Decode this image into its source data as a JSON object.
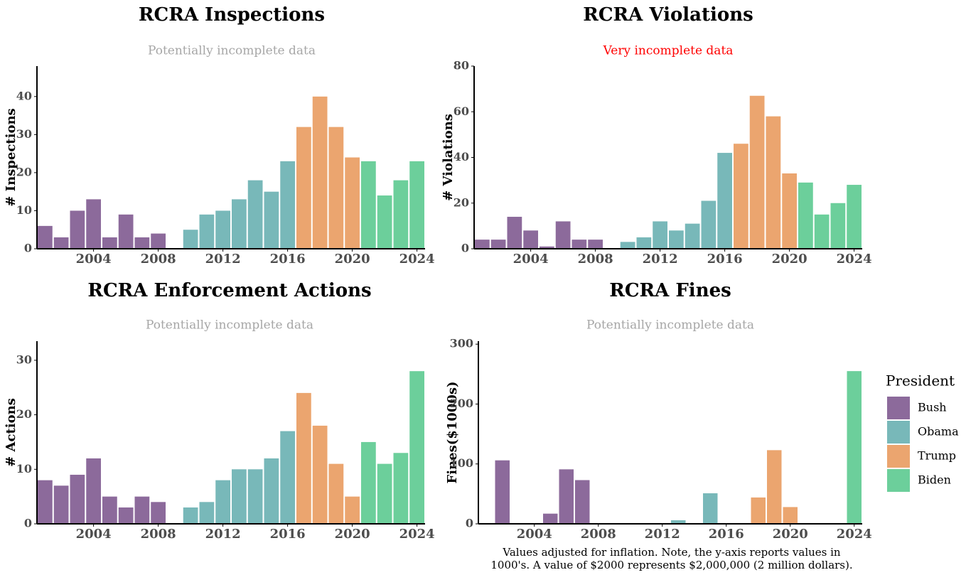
{
  "chart_data": [
    {
      "type": "bar",
      "title": "RCRA Inspections",
      "subtitle": "Potentially incomplete data",
      "subtitle_color": "#a6a6a6",
      "y_label": "# Inspections",
      "x": [
        2001,
        2002,
        2003,
        2004,
        2005,
        2006,
        2007,
        2008,
        2009,
        2010,
        2011,
        2012,
        2013,
        2014,
        2015,
        2016,
        2017,
        2018,
        2019,
        2020,
        2021,
        2022,
        2023,
        2024
      ],
      "series": [
        {
          "name": "Bush",
          "color": "#8c6a9b",
          "values": [
            6,
            3,
            10,
            13,
            3,
            9,
            3,
            4,
            null,
            null,
            null,
            null,
            null,
            null,
            null,
            null,
            null,
            null,
            null,
            null,
            null,
            null,
            null,
            null
          ]
        },
        {
          "name": "Obama",
          "color": "#78b8b9",
          "values": [
            null,
            null,
            null,
            null,
            null,
            null,
            null,
            null,
            0,
            5,
            9,
            10,
            13,
            18,
            15,
            23,
            null,
            null,
            null,
            null,
            null,
            null,
            null,
            null
          ]
        },
        {
          "name": "Trump",
          "color": "#eba56f",
          "values": [
            null,
            null,
            null,
            null,
            null,
            null,
            null,
            null,
            null,
            null,
            null,
            null,
            null,
            null,
            null,
            null,
            32,
            40,
            32,
            24,
            null,
            null,
            null,
            null
          ]
        },
        {
          "name": "Biden",
          "color": "#6ccf9b",
          "values": [
            null,
            null,
            null,
            null,
            null,
            null,
            null,
            null,
            null,
            null,
            null,
            null,
            null,
            null,
            null,
            null,
            null,
            null,
            null,
            null,
            23,
            14,
            18,
            23
          ]
        }
      ],
      "xlim": [
        2000.5,
        2024.5
      ],
      "xticks": [
        2004,
        2008,
        2012,
        2016,
        2020,
        2024
      ],
      "ylim": [
        0,
        48
      ],
      "yticks": [
        0,
        10,
        20,
        30,
        40
      ]
    },
    {
      "type": "bar",
      "title": "RCRA Violations",
      "subtitle": "Very incomplete data",
      "subtitle_color": "#ff0000",
      "y_label": "# Violations",
      "x": [
        2001,
        2002,
        2003,
        2004,
        2005,
        2006,
        2007,
        2008,
        2009,
        2010,
        2011,
        2012,
        2013,
        2014,
        2015,
        2016,
        2017,
        2018,
        2019,
        2020,
        2021,
        2022,
        2023,
        2024
      ],
      "series": [
        {
          "name": "Bush",
          "color": "#8c6a9b",
          "values": [
            4,
            4,
            14,
            8,
            1,
            12,
            4,
            4,
            null,
            null,
            null,
            null,
            null,
            null,
            null,
            null,
            null,
            null,
            null,
            null,
            null,
            null,
            null,
            null
          ]
        },
        {
          "name": "Obama",
          "color": "#78b8b9",
          "values": [
            null,
            null,
            null,
            null,
            null,
            null,
            null,
            null,
            0,
            3,
            5,
            12,
            8,
            11,
            21,
            42,
            null,
            null,
            null,
            null,
            null,
            null,
            null,
            null
          ]
        },
        {
          "name": "Trump",
          "color": "#eba56f",
          "values": [
            null,
            null,
            null,
            null,
            null,
            null,
            null,
            null,
            null,
            null,
            null,
            null,
            null,
            null,
            null,
            null,
            46,
            67,
            58,
            33,
            null,
            null,
            null,
            null
          ]
        },
        {
          "name": "Biden",
          "color": "#6ccf9b",
          "values": [
            null,
            null,
            null,
            null,
            null,
            null,
            null,
            null,
            null,
            null,
            null,
            null,
            null,
            null,
            null,
            null,
            null,
            null,
            null,
            null,
            29,
            15,
            20,
            28
          ]
        }
      ],
      "xlim": [
        2000.5,
        2024.5
      ],
      "xticks": [
        2004,
        2008,
        2012,
        2016,
        2020,
        2024
      ],
      "ylim": [
        0,
        80
      ],
      "yticks": [
        0,
        20,
        40,
        60,
        80
      ]
    },
    {
      "type": "bar",
      "title": "RCRA Enforcement Actions",
      "subtitle": "Potentially incomplete data",
      "subtitle_color": "#a6a6a6",
      "y_label": "# Actions",
      "x": [
        2001,
        2002,
        2003,
        2004,
        2005,
        2006,
        2007,
        2008,
        2009,
        2010,
        2011,
        2012,
        2013,
        2014,
        2015,
        2016,
        2017,
        2018,
        2019,
        2020,
        2021,
        2022,
        2023,
        2024
      ],
      "series": [
        {
          "name": "Bush",
          "color": "#8c6a9b",
          "values": [
            8,
            7,
            9,
            12,
            5,
            3,
            5,
            4,
            null,
            null,
            null,
            null,
            null,
            null,
            null,
            null,
            null,
            null,
            null,
            null,
            null,
            null,
            null,
            null
          ]
        },
        {
          "name": "Obama",
          "color": "#78b8b9",
          "values": [
            null,
            null,
            null,
            null,
            null,
            null,
            null,
            null,
            0,
            3,
            4,
            8,
            10,
            10,
            12,
            17,
            null,
            null,
            null,
            null,
            null,
            null,
            null,
            null
          ]
        },
        {
          "name": "Trump",
          "color": "#eba56f",
          "values": [
            null,
            null,
            null,
            null,
            null,
            null,
            null,
            null,
            null,
            null,
            null,
            null,
            null,
            null,
            null,
            null,
            24,
            18,
            11,
            5,
            null,
            null,
            null,
            null
          ]
        },
        {
          "name": "Biden",
          "color": "#6ccf9b",
          "values": [
            null,
            null,
            null,
            null,
            null,
            null,
            null,
            null,
            null,
            null,
            null,
            null,
            null,
            null,
            null,
            null,
            null,
            null,
            null,
            null,
            15,
            11,
            13,
            28
          ]
        }
      ],
      "xlim": [
        2000.5,
        2024.5
      ],
      "xticks": [
        2004,
        2008,
        2012,
        2016,
        2020,
        2024
      ],
      "ylim": [
        0,
        33.5
      ],
      "yticks": [
        0,
        10,
        20,
        30
      ]
    },
    {
      "type": "bar",
      "title": "RCRA Fines",
      "subtitle": "Potentially incomplete data",
      "subtitle_color": "#a6a6a6",
      "y_label": "Fines($1000s)",
      "note": [
        "Values adjusted for inflation. Note, the y-axis reports values in",
        "1000's. A value of $2000 represents $2,000,000 (2 million dollars)."
      ],
      "legend_title": "President",
      "x": [
        2001,
        2002,
        2003,
        2004,
        2005,
        2006,
        2007,
        2008,
        2009,
        2010,
        2011,
        2012,
        2013,
        2014,
        2015,
        2016,
        2017,
        2018,
        2019,
        2020,
        2021,
        2022,
        2023,
        2024
      ],
      "series": [
        {
          "name": "Bush",
          "color": "#8c6a9b",
          "values": [
            0,
            106,
            0,
            0,
            17,
            91,
            73,
            0,
            null,
            null,
            null,
            null,
            null,
            null,
            null,
            null,
            null,
            null,
            null,
            null,
            null,
            null,
            null,
            null
          ]
        },
        {
          "name": "Obama",
          "color": "#78b8b9",
          "values": [
            null,
            null,
            null,
            null,
            null,
            null,
            null,
            null,
            0,
            0,
            0,
            0,
            6,
            0,
            51,
            0,
            null,
            null,
            null,
            null,
            null,
            null,
            null,
            null
          ]
        },
        {
          "name": "Trump",
          "color": "#eba56f",
          "values": [
            null,
            null,
            null,
            null,
            null,
            null,
            null,
            null,
            null,
            null,
            null,
            null,
            null,
            null,
            null,
            null,
            0,
            44,
            123,
            28,
            null,
            null,
            null,
            null
          ]
        },
        {
          "name": "Biden",
          "color": "#6ccf9b",
          "values": [
            null,
            null,
            null,
            null,
            null,
            null,
            null,
            null,
            null,
            null,
            null,
            null,
            null,
            null,
            null,
            null,
            null,
            null,
            null,
            null,
            0,
            0,
            0,
            255
          ]
        }
      ],
      "xlim": [
        2000.5,
        2024.5
      ],
      "xticks": [
        2004,
        2008,
        2012,
        2016,
        2020,
        2024
      ],
      "ylim": [
        0,
        305
      ],
      "yticks": [
        0,
        100,
        200,
        300
      ]
    }
  ]
}
